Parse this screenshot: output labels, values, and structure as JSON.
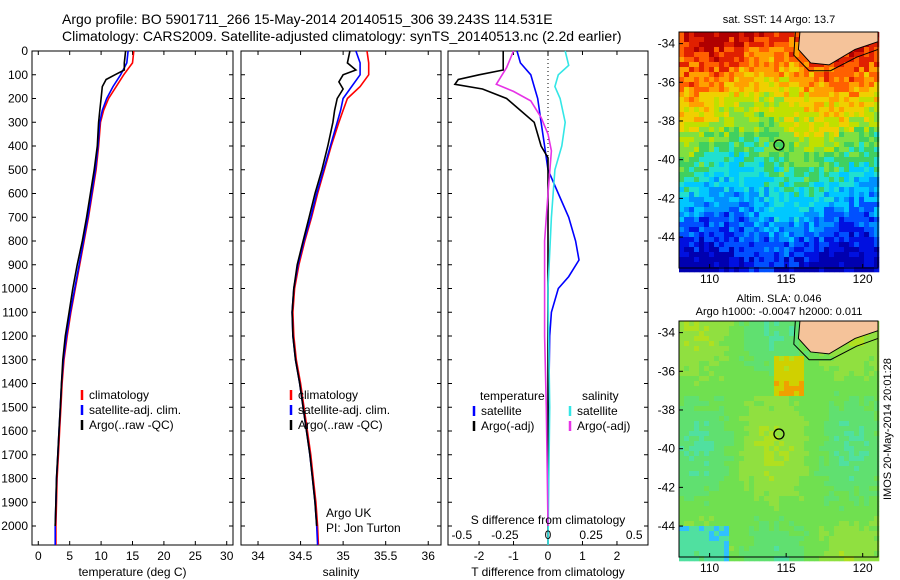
{
  "header": {
    "line1": "Argo profile: BO 5901711_266 15-May-2014 20140515_306 39.243S 114.531E",
    "line2": "Climatology: CARS2009. Satellite-adjusted climatology: synTS_20140513.nc (2.2d earlier)"
  },
  "colors": {
    "red": "#ff0000",
    "blue": "#0000ff",
    "black": "#000000",
    "cyan": "#33e6e6",
    "magenta": "#e633e6",
    "land": "#f5c39a"
  },
  "icons": {
    "land-mask": "coastline polygon",
    "argo-position": "open circle"
  },
  "chart_data": [
    {
      "type": "line",
      "name": "temperature",
      "xlabel": "temperature (deg C)",
      "xlim": [
        -1,
        31
      ],
      "xticks": [
        "0",
        "5",
        "10",
        "15",
        "20",
        "25",
        "30"
      ],
      "ylim": [
        0,
        2080
      ],
      "yticks": [
        "0",
        "100",
        "200",
        "300",
        "400",
        "500",
        "600",
        "700",
        "800",
        "900",
        "1000",
        "1100",
        "1200",
        "1300",
        "1400",
        "1500",
        "1600",
        "1700",
        "1800",
        "1900",
        "2000"
      ],
      "legend": [
        "climatology",
        "satellite-adj. clim.",
        "Argo(..raw -QC)"
      ],
      "legend_position": "lower-middle",
      "series": [
        {
          "color": "red",
          "points": [
            [
              15.2,
              0
            ],
            [
              15.0,
              50
            ],
            [
              13.6,
              100
            ],
            [
              12.4,
              150
            ],
            [
              11.2,
              200
            ],
            [
              10.4,
              250
            ],
            [
              9.9,
              300
            ],
            [
              9.6,
              400
            ],
            [
              9.2,
              500
            ],
            [
              8.6,
              600
            ],
            [
              8.0,
              700
            ],
            [
              7.3,
              800
            ],
            [
              6.6,
              900
            ],
            [
              5.9,
              1000
            ],
            [
              5.2,
              1100
            ],
            [
              4.6,
              1200
            ],
            [
              4.1,
              1300
            ],
            [
              3.8,
              1400
            ],
            [
              3.6,
              1500
            ],
            [
              3.4,
              1600
            ],
            [
              3.2,
              1700
            ],
            [
              3.0,
              1800
            ],
            [
              2.9,
              1900
            ],
            [
              2.8,
              2000
            ],
            [
              2.8,
              2080
            ]
          ]
        },
        {
          "color": "blue",
          "points": [
            [
              14.3,
              0
            ],
            [
              14.1,
              50
            ],
            [
              13.1,
              100
            ],
            [
              11.9,
              150
            ],
            [
              10.9,
              200
            ],
            [
              10.2,
              250
            ],
            [
              9.8,
              300
            ],
            [
              9.5,
              400
            ],
            [
              9.1,
              500
            ],
            [
              8.5,
              600
            ],
            [
              7.9,
              700
            ],
            [
              7.2,
              800
            ],
            [
              6.5,
              900
            ],
            [
              5.8,
              1000
            ],
            [
              5.1,
              1100
            ],
            [
              4.5,
              1200
            ],
            [
              4.0,
              1300
            ],
            [
              3.7,
              1400
            ],
            [
              3.5,
              1500
            ],
            [
              3.3,
              1600
            ],
            [
              3.1,
              1700
            ],
            [
              2.9,
              1800
            ],
            [
              2.8,
              1900
            ],
            [
              2.7,
              2000
            ],
            [
              2.7,
              2080
            ]
          ]
        },
        {
          "color": "black",
          "points": [
            [
              13.9,
              0
            ],
            [
              13.7,
              50
            ],
            [
              13.7,
              80
            ],
            [
              12.2,
              100
            ],
            [
              10.8,
              120
            ],
            [
              10.2,
              150
            ],
            [
              10.0,
              200
            ],
            [
              9.8,
              250
            ],
            [
              9.6,
              300
            ],
            [
              9.4,
              400
            ],
            [
              8.9,
              500
            ],
            [
              8.3,
              600
            ],
            [
              7.7,
              700
            ],
            [
              7.0,
              800
            ],
            [
              6.2,
              900
            ],
            [
              5.5,
              1000
            ],
            [
              4.9,
              1100
            ],
            [
              4.3,
              1200
            ],
            [
              3.9,
              1300
            ],
            [
              3.7,
              1400
            ],
            [
              3.5,
              1500
            ],
            [
              3.3,
              1600
            ],
            [
              3.1,
              1700
            ],
            [
              2.9,
              1800
            ],
            [
              2.8,
              1900
            ],
            [
              2.7,
              2000
            ]
          ]
        }
      ]
    },
    {
      "type": "line",
      "name": "salinity",
      "xlabel": "salinity",
      "xlim": [
        33.8,
        36.15
      ],
      "xticks": [
        "34",
        "34.5",
        "35",
        "35.5",
        "36"
      ],
      "ylim": [
        0,
        2080
      ],
      "legend": [
        "climatology",
        "satellite-adj. clim.",
        "Argo(..raw -QC)"
      ],
      "legend_position": "lower-middle",
      "annotation": [
        "Argo UK",
        "PI: Jon Turton"
      ],
      "series": [
        {
          "color": "red",
          "points": [
            [
              35.28,
              0
            ],
            [
              35.3,
              50
            ],
            [
              35.3,
              100
            ],
            [
              35.2,
              150
            ],
            [
              35.05,
              200
            ],
            [
              35.0,
              250
            ],
            [
              34.95,
              300
            ],
            [
              34.86,
              400
            ],
            [
              34.78,
              500
            ],
            [
              34.7,
              600
            ],
            [
              34.63,
              700
            ],
            [
              34.55,
              800
            ],
            [
              34.48,
              900
            ],
            [
              34.43,
              1000
            ],
            [
              34.41,
              1100
            ],
            [
              34.42,
              1200
            ],
            [
              34.45,
              1300
            ],
            [
              34.5,
              1400
            ],
            [
              34.54,
              1500
            ],
            [
              34.58,
              1600
            ],
            [
              34.62,
              1700
            ],
            [
              34.65,
              1800
            ],
            [
              34.68,
              1900
            ],
            [
              34.7,
              2000
            ],
            [
              34.71,
              2080
            ]
          ]
        },
        {
          "color": "blue",
          "points": [
            [
              35.15,
              0
            ],
            [
              35.2,
              50
            ],
            [
              35.2,
              100
            ],
            [
              35.1,
              150
            ],
            [
              35.0,
              200
            ],
            [
              34.97,
              250
            ],
            [
              34.93,
              300
            ],
            [
              34.85,
              400
            ],
            [
              34.77,
              500
            ],
            [
              34.69,
              600
            ],
            [
              34.62,
              700
            ],
            [
              34.54,
              800
            ],
            [
              34.47,
              900
            ],
            [
              34.42,
              1000
            ],
            [
              34.4,
              1100
            ],
            [
              34.41,
              1200
            ],
            [
              34.44,
              1300
            ],
            [
              34.49,
              1400
            ],
            [
              34.53,
              1500
            ],
            [
              34.57,
              1600
            ],
            [
              34.61,
              1700
            ],
            [
              34.64,
              1800
            ],
            [
              34.67,
              1900
            ],
            [
              34.69,
              2000
            ],
            [
              34.7,
              2080
            ]
          ]
        },
        {
          "color": "black",
          "points": [
            [
              35.08,
              0
            ],
            [
              35.05,
              50
            ],
            [
              35.15,
              80
            ],
            [
              35.0,
              100
            ],
            [
              34.95,
              130
            ],
            [
              35.0,
              160
            ],
            [
              34.93,
              200
            ],
            [
              34.9,
              250
            ],
            [
              34.88,
              300
            ],
            [
              34.82,
              400
            ],
            [
              34.75,
              500
            ],
            [
              34.67,
              600
            ],
            [
              34.6,
              700
            ],
            [
              34.53,
              800
            ],
            [
              34.46,
              900
            ],
            [
              34.42,
              1000
            ],
            [
              34.4,
              1100
            ],
            [
              34.41,
              1200
            ],
            [
              34.44,
              1300
            ],
            [
              34.49,
              1400
            ],
            [
              34.53,
              1500
            ],
            [
              34.57,
              1600
            ],
            [
              34.61,
              1700
            ],
            [
              34.64,
              1800
            ],
            [
              34.67,
              1900
            ],
            [
              34.69,
              2000
            ]
          ]
        }
      ]
    },
    {
      "type": "line",
      "name": "differences",
      "xlabel": "T difference from climatology",
      "top_axis_label": "S difference from climatology",
      "xlim": [
        -2.9,
        2.9
      ],
      "xticks": [
        "-2",
        "-1",
        "0",
        "1",
        "2"
      ],
      "top_ticks": [
        "-0.5",
        "-0.25",
        "0",
        "0.25",
        "0.5"
      ],
      "ylim": [
        0,
        2080
      ],
      "legend_left": [
        "temperature",
        "satellite",
        "Argo(-adj)"
      ],
      "legend_right": [
        "salinity",
        "satellite",
        "Argo(-adj)"
      ],
      "legend_position": "lower-middle",
      "series": [
        {
          "color": "blue",
          "label": "T satellite",
          "points": [
            [
              -0.9,
              0
            ],
            [
              -0.8,
              50
            ],
            [
              -0.5,
              100
            ],
            [
              -0.4,
              150
            ],
            [
              -0.3,
              200
            ],
            [
              -0.2,
              300
            ],
            [
              -0.1,
              400
            ],
            [
              0.0,
              500
            ],
            [
              0.3,
              600
            ],
            [
              0.6,
              700
            ],
            [
              0.8,
              800
            ],
            [
              0.9,
              880
            ],
            [
              0.6,
              950
            ],
            [
              0.3,
              1000
            ],
            [
              0.1,
              1100
            ],
            [
              0.05,
              1200
            ],
            [
              0.03,
              1400
            ],
            [
              0.02,
              1600
            ],
            [
              0.0,
              2000
            ]
          ]
        },
        {
          "color": "black",
          "label": "T Argo(-adj)",
          "points": [
            [
              -1.3,
              0
            ],
            [
              -1.3,
              50
            ],
            [
              -1.3,
              80
            ],
            [
              -2.0,
              100
            ],
            [
              -2.6,
              120
            ],
            [
              -2.7,
              140
            ],
            [
              -1.9,
              160
            ],
            [
              -1.2,
              200
            ],
            [
              -0.8,
              250
            ],
            [
              -0.4,
              300
            ],
            [
              -0.2,
              400
            ],
            [
              0.0,
              450
            ],
            [
              0.0,
              2080
            ]
          ]
        },
        {
          "color": "cyan",
          "label": "S satellite",
          "points": [
            [
              0.5,
              0
            ],
            [
              0.6,
              60
            ],
            [
              0.3,
              100
            ],
            [
              0.2,
              150
            ],
            [
              0.35,
              200
            ],
            [
              0.5,
              300
            ],
            [
              0.4,
              400
            ],
            [
              0.2,
              500
            ],
            [
              0.1,
              700
            ],
            [
              0.0,
              1000
            ],
            [
              0.05,
              1500
            ],
            [
              0.0,
              2080
            ]
          ]
        },
        {
          "color": "magenta",
          "label": "S Argo(-adj)",
          "points": [
            [
              -1.0,
              0
            ],
            [
              -1.2,
              70
            ],
            [
              -1.5,
              140
            ],
            [
              -1.0,
              170
            ],
            [
              -0.5,
              210
            ],
            [
              -0.2,
              280
            ],
            [
              0.0,
              350
            ],
            [
              0.1,
              420
            ],
            [
              0.0,
              600
            ],
            [
              -0.1,
              800
            ],
            [
              -0.1,
              1200
            ],
            [
              -0.05,
              1500
            ],
            [
              0.0,
              2000
            ]
          ]
        }
      ]
    },
    {
      "type": "heatmap",
      "name": "sst-map",
      "title": "sat. SST: 14 Argo: 13.7",
      "xlim": [
        108,
        121
      ],
      "ylim": [
        -45.6,
        -33.4
      ],
      "xticks": [
        "110",
        "115",
        "120"
      ],
      "yticks": [
        "-34",
        "-36",
        "-38",
        "-40",
        "-42",
        "-44"
      ],
      "argo_position": {
        "lon": 114.531,
        "lat": -39.243
      }
    },
    {
      "type": "heatmap",
      "name": "sla-map",
      "title_lines": [
        "Altim. SLA: 0.046",
        "Argo h1000: -0.0047 h2000: 0.011"
      ],
      "xlim": [
        108,
        121
      ],
      "ylim": [
        -45.6,
        -33.4
      ],
      "xticks": [
        "110",
        "115",
        "120"
      ],
      "yticks": [
        "-34",
        "-36",
        "-38",
        "-40",
        "-42",
        "-44"
      ],
      "argo_position": {
        "lon": 114.531,
        "lat": -39.243
      }
    }
  ],
  "footer": {
    "stamp": "IMOS 20-May-2014 20:01:28"
  }
}
